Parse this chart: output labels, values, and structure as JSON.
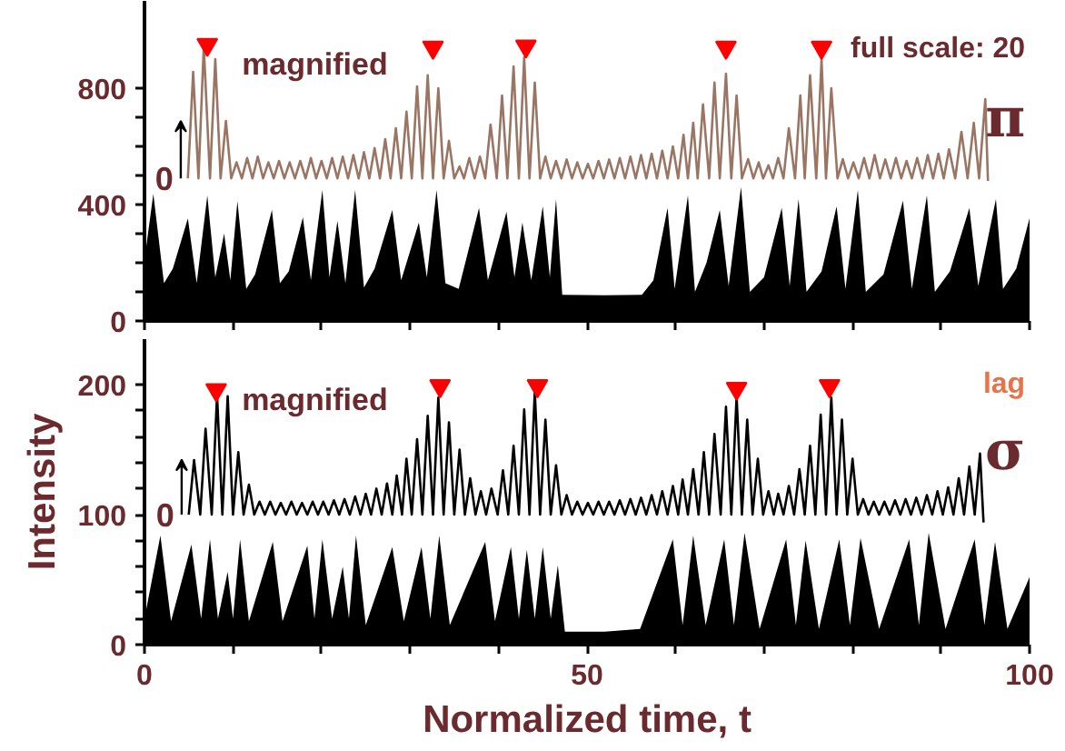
{
  "chart_data": [
    {
      "type": "area",
      "xlim": [
        0,
        100
      ],
      "ylim": [
        0,
        1100
      ],
      "tick_labels": "y",
      "grid": false,
      "xticks": [
        {
          "value": 0,
          "label": null
        },
        {
          "value": 10,
          "label": null
        },
        {
          "value": 20,
          "label": null
        },
        {
          "value": 30,
          "label": null
        },
        {
          "value": 40,
          "label": null
        },
        {
          "value": 50,
          "label": null
        },
        {
          "value": 60,
          "label": null
        },
        {
          "value": 70,
          "label": null
        },
        {
          "value": 80,
          "label": null
        },
        {
          "value": 90,
          "label": null
        },
        {
          "value": 100,
          "label": null
        }
      ],
      "yticks": [
        0,
        {
          "value": 100,
          "label": null
        },
        {
          "value": 200,
          "label": null
        },
        {
          "value": 300,
          "label": null
        },
        400,
        {
          "value": 500,
          "label": null
        },
        {
          "value": 600,
          "label": null
        },
        {
          "value": 700,
          "label": null
        },
        800
      ],
      "series": [
        {
          "color": "#000000",
          "x": [
            0,
            1.0,
            2.2,
            3.2,
            4.9,
            5.9,
            7.1,
            8.0,
            9.0,
            9.7,
            10.5,
            11.5,
            12.5,
            14.4,
            15.3,
            16.3,
            17.9,
            18.8,
            20.1,
            20.9,
            21.8,
            22.7,
            23.8,
            24.8,
            26.0,
            28.0,
            29.0,
            31.0,
            31.9,
            33.0,
            34.0,
            35.5,
            37.8,
            38.8,
            40.9,
            41.8,
            42.7,
            43.7,
            45.0,
            45.8,
            46.5,
            47.2,
            52,
            56.2,
            57.5,
            59.1,
            59.9,
            61.4,
            62.2,
            63.5,
            65.0,
            66.0,
            67.4,
            68.4,
            70.0,
            72.0,
            72.9,
            73.9,
            74.8,
            76.5,
            78.2,
            79.2,
            80.6,
            81.5,
            83.5,
            85.7,
            86.7,
            88.4,
            89.3,
            91.0,
            93.2,
            94.2,
            96.2,
            97.0,
            98.5,
            100
          ],
          "values": [
            210,
            437,
            130,
            180,
            352,
            130,
            431,
            150,
            300,
            140,
            412,
            110,
            160,
            381,
            130,
            170,
            356,
            140,
            450,
            150,
            344,
            130,
            450,
            115,
            180,
            381,
            140,
            338,
            150,
            450,
            130,
            110,
            388,
            140,
            375,
            150,
            338,
            140,
            394,
            150,
            419,
            90,
            88,
            90,
            140,
            388,
            110,
            431,
            100,
            200,
            381,
            120,
            460,
            100,
            150,
            388,
            120,
            419,
            100,
            170,
            394,
            110,
            450,
            100,
            160,
            413,
            110,
            431,
            100,
            170,
            388,
            120,
            419,
            110,
            180,
            353
          ]
        },
        {
          "type": "line",
          "color": "#9a7564",
          "x": [
            4.9,
            5.5,
            6.1,
            6.7,
            7.4,
            8.0,
            8.6,
            9.2,
            9.8,
            10.4,
            11.0,
            11.6,
            12.2,
            12.8,
            13.4,
            14.0,
            14.6,
            15.2,
            15.8,
            16.4,
            17.0,
            17.6,
            18.2,
            18.8,
            19.4,
            20.0,
            20.6,
            21.2,
            21.8,
            22.4,
            23.0,
            23.6,
            24.2,
            24.8,
            25.4,
            26.0,
            26.6,
            27.2,
            27.8,
            28.4,
            29.0,
            29.6,
            30.2,
            30.8,
            31.4,
            32.0,
            32.6,
            33.2,
            33.8,
            34.4,
            35.0,
            35.6,
            36.1,
            36.7,
            37.3,
            37.9,
            38.5,
            39.1,
            39.8,
            40.4,
            41.0,
            41.7,
            42.3,
            42.9,
            43.5,
            44.1,
            44.7,
            45.3,
            45.9,
            46.5,
            47.1,
            47.7,
            48.3,
            48.9,
            49.5,
            50.1,
            50.7,
            51.3,
            51.9,
            52.5,
            53.1,
            53.7,
            54.3,
            54.9,
            55.5,
            56.1,
            56.7,
            57.3,
            57.9,
            58.5,
            59.1,
            59.7,
            60.3,
            60.9,
            61.4,
            62.0,
            62.5,
            63.1,
            63.8,
            64.4,
            65.0,
            65.7,
            66.3,
            66.9,
            67.5,
            68.2,
            68.8,
            69.4,
            69.9,
            70.5,
            71.0,
            71.6,
            72.2,
            72.8,
            73.5,
            74.1,
            74.6,
            75.2,
            75.9,
            76.5,
            77.0,
            77.6,
            78.3,
            78.9,
            79.5,
            80.1,
            80.7,
            81.3,
            81.9,
            82.5,
            83.1,
            83.7,
            84.3,
            84.9,
            85.5,
            86.1,
            86.7,
            87.3,
            87.9,
            88.5,
            89.1,
            89.7,
            90.3,
            90.9,
            91.6,
            92.3,
            93.0,
            93.7,
            94.3,
            95.0,
            95.3
          ],
          "values": [
            490,
            856,
            490,
            944,
            490,
            900,
            490,
            687,
            490,
            545,
            490,
            560,
            490,
            565,
            490,
            545,
            490,
            550,
            490,
            545,
            490,
            550,
            490,
            560,
            490,
            550,
            490,
            560,
            490,
            565,
            490,
            570,
            490,
            580,
            490,
            594,
            490,
            625,
            490,
            662,
            490,
            719,
            490,
            806,
            490,
            844,
            490,
            800,
            490,
            619,
            490,
            531,
            490,
            560,
            490,
            565,
            490,
            675,
            490,
            775,
            490,
            875,
            490,
            906,
            490,
            819,
            490,
            565,
            490,
            550,
            490,
            555,
            490,
            545,
            490,
            540,
            490,
            550,
            490,
            555,
            490,
            560,
            490,
            565,
            490,
            570,
            490,
            575,
            490,
            585,
            490,
            600,
            490,
            640,
            490,
            681,
            490,
            744,
            490,
            819,
            490,
            850,
            490,
            775,
            490,
            556,
            490,
            545,
            490,
            535,
            490,
            560,
            490,
            662,
            490,
            775,
            490,
            844,
            490,
            900,
            490,
            800,
            490,
            556,
            490,
            545,
            490,
            560,
            490,
            570,
            490,
            555,
            490,
            560,
            490,
            550,
            490,
            560,
            490,
            570,
            490,
            575,
            490,
            590,
            490,
            650,
            490,
            681,
            490,
            762,
            481
          ]
        },
        {
          "type": "scatter",
          "marker": "triangle",
          "color": "#ff0000",
          "x": [
            7.1,
            32.6,
            43.1,
            65.7,
            76.5
          ],
          "values": [
            950,
            940,
            944,
            940,
            940
          ]
        }
      ],
      "annotations": [
        "magnified",
        "0",
        "full scale: 20",
        "π"
      ]
    },
    {
      "type": "area",
      "xlim": [
        0,
        100
      ],
      "ylim": [
        0,
        235
      ],
      "grid": false,
      "xlabel": "Normalized time, t",
      "ylabel": "Intensity",
      "xticks": [
        0,
        {
          "value": 10,
          "label": null
        },
        {
          "value": 20,
          "label": null
        },
        {
          "value": 30,
          "label": null
        },
        {
          "value": 40,
          "label": null
        },
        50,
        {
          "value": 60,
          "label": null
        },
        {
          "value": 70,
          "label": null
        },
        {
          "value": 80,
          "label": null
        },
        {
          "value": 90,
          "label": null
        },
        100
      ],
      "yticks": [
        0,
        {
          "value": 20,
          "label": null
        },
        {
          "value": 40,
          "label": null
        },
        {
          "value": 60,
          "label": null
        },
        {
          "value": 80,
          "label": null
        },
        100,
        {
          "value": 120,
          "label": null
        },
        {
          "value": 140,
          "label": null
        },
        {
          "value": 160,
          "label": null
        },
        {
          "value": 180,
          "label": null
        },
        200
      ],
      "series": [
        {
          "color": "#000000",
          "x": [
            0,
            1.8,
            3.0,
            5.3,
            6.4,
            7.4,
            8.3,
            9.4,
            10.0,
            10.8,
            11.8,
            14.5,
            15.6,
            18.4,
            19.2,
            20.1,
            21.2,
            22.4,
            23.1,
            23.9,
            25.0,
            28.0,
            29.3,
            31.3,
            32.3,
            33.3,
            34.5,
            38.5,
            39.6,
            41.4,
            42.3,
            43.2,
            44.1,
            45.0,
            45.9,
            46.7,
            47.5,
            52,
            56,
            59.7,
            60.8,
            62.0,
            63.4,
            65.5,
            66.6,
            67.8,
            69.5,
            72.5,
            73.6,
            74.7,
            76.2,
            78.5,
            79.7,
            80.9,
            83,
            86.4,
            87.5,
            88.6,
            90.5,
            93.8,
            94.9,
            96.1,
            97.5,
            100
          ],
          "values": [
            20,
            84,
            18,
            77,
            20,
            81,
            20,
            56,
            20,
            81,
            18,
            79,
            18,
            76,
            20,
            81,
            20,
            60,
            20,
            84,
            15,
            75,
            18,
            75,
            20,
            84,
            15,
            79,
            18,
            75,
            20,
            73,
            20,
            75,
            20,
            61,
            10,
            10,
            12,
            81,
            15,
            84,
            15,
            81,
            15,
            86,
            12,
            81,
            15,
            80,
            12,
            81,
            15,
            82,
            12,
            81,
            15,
            86,
            12,
            81,
            15,
            79,
            12,
            52
          ]
        },
        {
          "type": "line",
          "color": "#000000",
          "x": [
            5.0,
            5.6,
            6.3,
            6.9,
            7.6,
            8.2,
            8.8,
            9.4,
            10.0,
            10.6,
            11.2,
            11.8,
            12.4,
            13.0,
            13.6,
            14.2,
            14.8,
            15.4,
            16.0,
            16.6,
            17.2,
            17.8,
            18.4,
            19.0,
            19.6,
            20.2,
            20.8,
            21.4,
            22.0,
            22.6,
            23.2,
            23.8,
            24.4,
            25.0,
            25.6,
            26.2,
            26.8,
            27.4,
            28.0,
            28.5,
            29.1,
            29.6,
            30.2,
            30.8,
            31.4,
            32.0,
            32.6,
            33.2,
            33.8,
            34.4,
            35.0,
            35.6,
            36.2,
            36.8,
            37.4,
            38.0,
            38.6,
            39.2,
            39.9,
            40.5,
            41.1,
            41.7,
            42.3,
            42.9,
            43.5,
            44.1,
            44.7,
            45.3,
            45.9,
            46.5,
            47.1,
            47.7,
            48.3,
            48.9,
            49.5,
            50.1,
            50.7,
            51.3,
            51.9,
            52.5,
            53.1,
            53.7,
            54.3,
            54.9,
            55.5,
            56.1,
            56.7,
            57.3,
            57.9,
            58.5,
            59.1,
            59.7,
            60.3,
            60.8,
            61.4,
            62.0,
            62.6,
            63.2,
            63.8,
            64.4,
            65.1,
            65.7,
            66.3,
            66.9,
            67.5,
            68.1,
            68.7,
            69.3,
            69.9,
            70.5,
            71.1,
            71.6,
            72.2,
            72.8,
            73.4,
            74.0,
            74.6,
            75.2,
            75.8,
            76.4,
            77.0,
            77.6,
            78.2,
            78.8,
            79.4,
            80.0,
            80.6,
            81.2,
            81.8,
            82.4,
            83.0,
            83.6,
            84.2,
            84.8,
            85.4,
            86.0,
            86.6,
            87.2,
            87.8,
            88.4,
            89.0,
            89.6,
            90.2,
            90.8,
            91.4,
            92.0,
            92.6,
            93.2,
            93.8,
            94.4,
            94.8
          ],
          "values": [
            100,
            142,
            100,
            166,
            100,
            192,
            100,
            191,
            100,
            148,
            100,
            123,
            100,
            110,
            100,
            110,
            100,
            109,
            100,
            110,
            100,
            109,
            100,
            110,
            100,
            110,
            100,
            111,
            100,
            112,
            100,
            114,
            100,
            116,
            100,
            120,
            100,
            124,
            100,
            130,
            100,
            143,
            100,
            158,
            100,
            176,
            100,
            190,
            100,
            171,
            100,
            150,
            100,
            128,
            100,
            118,
            100,
            120,
            100,
            134,
            100,
            153,
            100,
            181,
            100,
            195,
            100,
            173,
            100,
            138,
            100,
            115,
            100,
            110,
            100,
            109,
            100,
            110,
            100,
            110,
            100,
            111,
            100,
            112,
            100,
            113,
            100,
            115,
            100,
            118,
            100,
            122,
            100,
            127,
            100,
            135,
            100,
            148,
            100,
            162,
            100,
            183,
            100,
            191,
            100,
            173,
            100,
            143,
            100,
            118,
            100,
            116,
            100,
            122,
            100,
            135,
            100,
            153,
            100,
            177,
            100,
            190,
            100,
            173,
            100,
            143,
            100,
            112,
            100,
            110,
            100,
            110,
            100,
            111,
            100,
            112,
            100,
            113,
            100,
            115,
            100,
            118,
            100,
            121,
            100,
            128,
            100,
            137,
            100,
            147,
            94
          ]
        },
        {
          "type": "scatter",
          "marker": "triangle",
          "color": "#ff0000",
          "x": [
            8.1,
            33.4,
            44.4,
            66.9,
            77.4
          ],
          "values": [
            196,
            199,
            199,
            197,
            199
          ]
        }
      ],
      "annotations": [
        "magnified",
        "0",
        "lag",
        "σ"
      ]
    }
  ]
}
